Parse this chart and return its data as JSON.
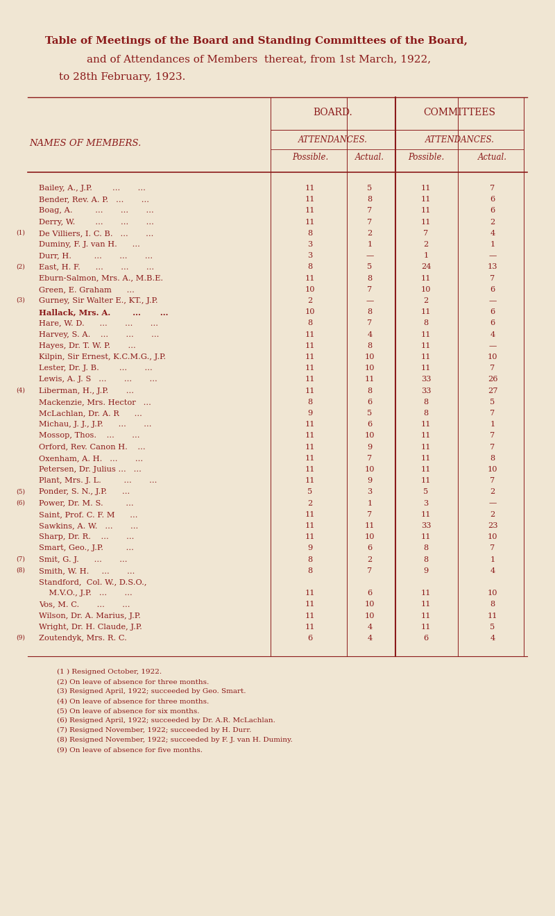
{
  "bg_color": "#f0e6d3",
  "text_color": "#8b1a1a",
  "title_lines": [
    "Table of Meetings of the Board and Standing Committees of the Board,",
    "and of Attendances of Members  thereat, from 1st March, 1922,",
    "to 28th February, 1923."
  ],
  "rows": [
    {
      "note": "",
      "name": "Bailey, A., J.P.        ...       ...",
      "bp": "11",
      "ba": "5",
      "cp": "11",
      "ca": "7",
      "bold": false
    },
    {
      "note": "",
      "name": "Bender, Rev. A. P.   ...       ...",
      "bp": "11",
      "ba": "8",
      "cp": "11",
      "ca": "6",
      "bold": false
    },
    {
      "note": "",
      "name": "Boag, A.         ...       ...       ...",
      "bp": "11",
      "ba": "7",
      "cp": "11",
      "ca": "6",
      "bold": false
    },
    {
      "note": "",
      "name": "Derry, W.        ...       ...       ...",
      "bp": "11",
      "ba": "7",
      "cp": "11",
      "ca": "2",
      "bold": false
    },
    {
      "note": "(1)",
      "name": "De Villiers, I. C. B.   ...       ...",
      "bp": "8",
      "ba": "2",
      "cp": "7",
      "ca": "4",
      "bold": false
    },
    {
      "note": "",
      "name": "Duminy, F. J. van H.      ...",
      "bp": "3",
      "ba": "1",
      "cp": "2",
      "ca": "1",
      "bold": false
    },
    {
      "note": "",
      "name": "Durr, H.         ...       ...       ...",
      "bp": "3",
      "ba": "—",
      "cp": "1",
      "ca": "—",
      "bold": false
    },
    {
      "note": "(2)",
      "name": "East, H. F.      ...       ...       ...",
      "bp": "8",
      "ba": "5",
      "cp": "24",
      "ca": "13",
      "bold": false
    },
    {
      "note": "",
      "name": "Eburn-Salmon, Mrs. A., M.B.E.",
      "bp": "11",
      "ba": "8",
      "cp": "11",
      "ca": "7",
      "bold": false
    },
    {
      "note": "",
      "name": "Green, E. Graham      ...",
      "bp": "10",
      "ba": "7",
      "cp": "10",
      "ca": "6",
      "bold": false
    },
    {
      "note": "(3)",
      "name": "Gurney, Sir Walter E., KT., J.P.",
      "bp": "2",
      "ba": "—",
      "cp": "2",
      "ca": "—",
      "bold": false
    },
    {
      "note": "",
      "name": "Hallack, Mrs. A.        ...       ...",
      "bp": "10",
      "ba": "8",
      "cp": "11",
      "ca": "6",
      "bold": true
    },
    {
      "note": "",
      "name": "Hare, W. D.      ...       ...       ...",
      "bp": "8",
      "ba": "7",
      "cp": "8",
      "ca": "6",
      "bold": false
    },
    {
      "note": "",
      "name": "Harvey, S. A.    ...       ...       ...",
      "bp": "11",
      "ba": "4",
      "cp": "11",
      "ca": "4",
      "bold": false
    },
    {
      "note": "",
      "name": "Hayes, Dr. T. W. P.       ...",
      "bp": "11",
      "ba": "8",
      "cp": "11",
      "ca": "—",
      "bold": false
    },
    {
      "note": "",
      "name": "Kilpin, Sir Ernest, K.C.M.G., J.P.",
      "bp": "11",
      "ba": "10",
      "cp": "11",
      "ca": "10",
      "bold": false
    },
    {
      "note": "",
      "name": "Lester, Dr. J. B.        ...       ...",
      "bp": "11",
      "ba": "10",
      "cp": "11",
      "ca": "7",
      "bold": false
    },
    {
      "note": "",
      "name": "Lewis, A. J. S   ...       ...       ...",
      "bp": "11",
      "ba": "11",
      "cp": "33",
      "ca": "26",
      "bold": false
    },
    {
      "note": "(4)",
      "name": "Liberman, H., J.P.       ...",
      "bp": "11",
      "ba": "8",
      "cp": "33",
      "ca": "27",
      "bold": false
    },
    {
      "note": "",
      "name": "Mackenzie, Mrs. Hector   ...",
      "bp": "8",
      "ba": "6",
      "cp": "8",
      "ca": "5",
      "bold": false
    },
    {
      "note": "",
      "name": "McLachlan, Dr. A. R      ...",
      "bp": "9",
      "ba": "5",
      "cp": "8",
      "ca": "7",
      "bold": false
    },
    {
      "note": "",
      "name": "Michau, J. J., J.P.      ...       ...",
      "bp": "11",
      "ba": "6",
      "cp": "11",
      "ca": "1",
      "bold": false
    },
    {
      "note": "",
      "name": "Mossop, Thos.    ...       ...",
      "bp": "11",
      "ba": "10",
      "cp": "11",
      "ca": "7",
      "bold": false
    },
    {
      "note": "",
      "name": "Orford, Rev. Canon H.    ...",
      "bp": "11",
      "ba": "9",
      "cp": "11",
      "ca": "7",
      "bold": false
    },
    {
      "note": "",
      "name": "Oxenham, A. H.   ...       ...",
      "bp": "11",
      "ba": "7",
      "cp": "11",
      "ca": "8",
      "bold": false
    },
    {
      "note": "",
      "name": "Petersen, Dr. Julius ...   ...",
      "bp": "11",
      "ba": "10",
      "cp": "11",
      "ca": "10",
      "bold": false
    },
    {
      "note": "",
      "name": "Plant, Mrs. J. L.         ...       ...",
      "bp": "11",
      "ba": "9",
      "cp": "11",
      "ca": "7",
      "bold": false
    },
    {
      "note": "(5)",
      "name": "Ponder, S. N., J.P.      ...",
      "bp": "5",
      "ba": "3",
      "cp": "5",
      "ca": "2",
      "bold": false
    },
    {
      "note": "(6)",
      "name": "Power, Dr. M. S.         ...",
      "bp": "2",
      "ba": "1",
      "cp": "3",
      "ca": "—",
      "bold": false
    },
    {
      "note": "",
      "name": "Saint, Prof. C. F. M      ...",
      "bp": "11",
      "ba": "7",
      "cp": "11",
      "ca": "2",
      "bold": false
    },
    {
      "note": "",
      "name": "Sawkins, A. W.   ...       ...",
      "bp": "11",
      "ba": "11",
      "cp": "33",
      "ca": "23",
      "bold": false
    },
    {
      "note": "",
      "name": "Sharp, Dr. R.    ...       ...",
      "bp": "11",
      "ba": "10",
      "cp": "11",
      "ca": "10",
      "bold": false
    },
    {
      "note": "",
      "name": "Smart, Geo., J.P.         ...",
      "bp": "9",
      "ba": "6",
      "cp": "8",
      "ca": "7",
      "bold": false
    },
    {
      "note": "(7)",
      "name": "Smit, G. J.      ...       ...",
      "bp": "8",
      "ba": "2",
      "cp": "8",
      "ca": "1",
      "bold": false
    },
    {
      "note": "(8)",
      "name": "Smith, W. H.     ...       ...",
      "bp": "8",
      "ba": "7",
      "cp": "9",
      "ca": "4",
      "bold": false
    },
    {
      "note": "",
      "name": "Standford,  Col. W., D.S.O.,",
      "bp": "",
      "ba": "",
      "cp": "",
      "ca": "",
      "bold": false
    },
    {
      "note": "",
      "name": "    M.V.O., J.P.   ...       ...",
      "bp": "11",
      "ba": "6",
      "cp": "11",
      "ca": "10",
      "bold": false
    },
    {
      "note": "",
      "name": "Vos, M. C.       ...       ...",
      "bp": "11",
      "ba": "10",
      "cp": "11",
      "ca": "8",
      "bold": false
    },
    {
      "note": "",
      "name": "Wilson, Dr. A. Marius, J.P.",
      "bp": "11",
      "ba": "10",
      "cp": "11",
      "ca": "11",
      "bold": false
    },
    {
      "note": "",
      "name": "Wright, Dr. H. Claude, J.P.",
      "bp": "11",
      "ba": "4",
      "cp": "11",
      "ca": "5",
      "bold": false
    },
    {
      "note": "(9)",
      "name": "Zoutendyk, Mrs. R. C.",
      "bp": "6",
      "ba": "4",
      "cp": "6",
      "ca": "4",
      "bold": false
    }
  ],
  "footnotes": [
    "(1 ) Resigned October, 1922.",
    "(2) On leave of absence for three months.",
    "(3) Resigned April, 1922; succeeded by Geo. Smart.",
    "(4) On leave of absence for three months.",
    "(5) On leave of absence for six months.",
    "(6) Resigned April, 1922; succeeded by Dr. A.R. McLachlan.",
    "(7) Resigned November, 1922; succeeded by H. Durr.",
    "(8) Resigned November, 1922; succeeded by F. J. van H. Duminy.",
    "(9) On leave of absence for five months."
  ]
}
